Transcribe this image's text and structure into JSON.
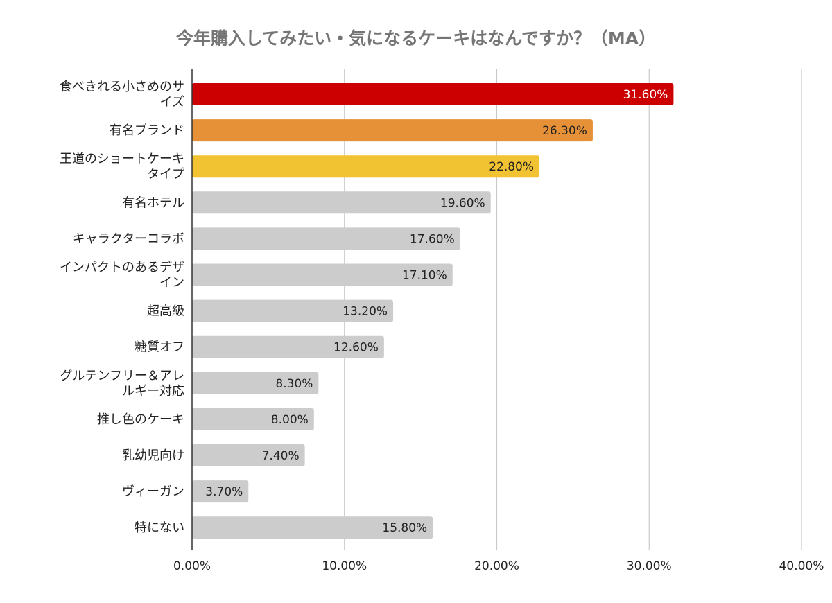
{
  "chart_data": {
    "type": "bar",
    "orientation": "horizontal",
    "title": "今年購入してみたい・気になるケーキはなんですか？（MA）",
    "xlabel": "",
    "ylabel": "",
    "xlim": [
      0,
      40
    ],
    "x_ticks": [
      "0.00%",
      "10.00%",
      "20.00%",
      "30.00%",
      "40.00%"
    ],
    "grid": "vertical",
    "categories": [
      "食べきれる小さめのサイズ",
      "有名ブランド",
      "王道のショートケーキタイプ",
      "有名ホテル",
      "キャラクターコラボ",
      "インパクトのあるデザイン",
      "超高級",
      "糖質オフ",
      "グルテンフリー＆アレルギー対応",
      "推し色のケーキ",
      "乳幼児向け",
      "ヴィーガン",
      "特にない"
    ],
    "category_lines": [
      [
        "食べきれる小さめのサ",
        "イズ"
      ],
      [
        "有名ブランド"
      ],
      [
        "王道のショートケーキ",
        "タイプ"
      ],
      [
        "有名ホテル"
      ],
      [
        "キャラクターコラボ"
      ],
      [
        "インパクトのあるデザ",
        "イン"
      ],
      [
        "超高級"
      ],
      [
        "糖質オフ"
      ],
      [
        "グルテンフリー＆アレ",
        "ルギー対応"
      ],
      [
        "推し色のケーキ"
      ],
      [
        "乳幼児向け"
      ],
      [
        "ヴィーガン"
      ],
      [
        "特にない"
      ]
    ],
    "values": [
      31.6,
      26.3,
      22.8,
      19.6,
      17.6,
      17.1,
      13.2,
      12.6,
      8.3,
      8.0,
      7.4,
      3.7,
      15.8
    ],
    "value_labels": [
      "31.60%",
      "26.30%",
      "22.80%",
      "19.60%",
      "17.60%",
      "17.10%",
      "13.20%",
      "12.60%",
      "8.30%",
      "8.00%",
      "7.40%",
      "3.70%",
      "15.80%"
    ],
    "bar_colors": [
      "#cc0000",
      "#e69138",
      "#f1c232",
      "#cccccc",
      "#cccccc",
      "#cccccc",
      "#cccccc",
      "#cccccc",
      "#cccccc",
      "#cccccc",
      "#cccccc",
      "#cccccc",
      "#cccccc"
    ],
    "label_colors": [
      "#ffffff",
      "#222222",
      "#222222",
      "#222222",
      "#222222",
      "#222222",
      "#222222",
      "#222222",
      "#222222",
      "#222222",
      "#222222",
      "#222222",
      "#222222"
    ]
  }
}
